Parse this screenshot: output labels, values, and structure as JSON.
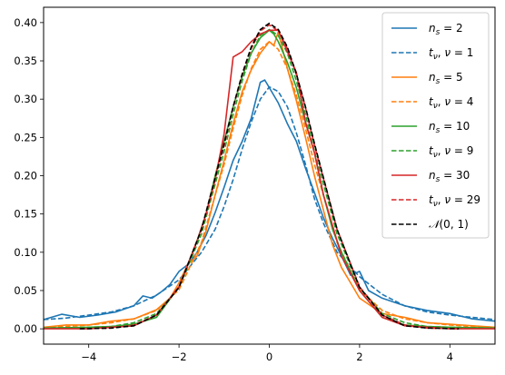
{
  "chart_data": {
    "type": "line",
    "title": "",
    "xlabel": "",
    "ylabel": "",
    "xlim": [
      -5,
      5
    ],
    "ylim": [
      -0.02,
      0.42
    ],
    "xticks": [
      -4,
      -2,
      0,
      2,
      4
    ],
    "xtick_labels": [
      "−4",
      "−2",
      "0",
      "2",
      "4"
    ],
    "yticks": [
      0.0,
      0.05,
      0.1,
      0.15,
      0.2,
      0.25,
      0.3,
      0.35,
      0.4
    ],
    "ytick_labels": [
      "0.00",
      "0.05",
      "0.10",
      "0.15",
      "0.20",
      "0.25",
      "0.30",
      "0.35",
      "0.40"
    ],
    "grid": false,
    "legend_position": "top-right",
    "series": [
      {
        "label": "n_s = 2",
        "color": "#1f77b4",
        "dash": "solid",
        "x": [
          -5.0,
          -4.6,
          -4.2,
          -3.8,
          -3.4,
          -3.0,
          -2.8,
          -2.6,
          -2.4,
          -2.2,
          -2.0,
          -1.8,
          -1.6,
          -1.4,
          -1.2,
          -1.0,
          -0.8,
          -0.6,
          -0.4,
          -0.2,
          -0.1,
          0.0,
          0.2,
          0.4,
          0.6,
          0.8,
          1.0,
          1.2,
          1.4,
          1.6,
          1.8,
          2.0,
          2.2,
          2.5,
          3.0,
          3.5,
          4.0,
          4.5,
          5.0
        ],
        "y": [
          0.012,
          0.019,
          0.015,
          0.018,
          0.022,
          0.03,
          0.043,
          0.04,
          0.048,
          0.058,
          0.075,
          0.084,
          0.1,
          0.122,
          0.152,
          0.185,
          0.22,
          0.245,
          0.275,
          0.322,
          0.325,
          0.315,
          0.295,
          0.268,
          0.245,
          0.21,
          0.178,
          0.145,
          0.118,
          0.095,
          0.07,
          0.075,
          0.05,
          0.04,
          0.03,
          0.024,
          0.02,
          0.013,
          0.01
        ]
      },
      {
        "label": "t_ν, ν = 1",
        "color": "#1f77b4",
        "dash": "dashed",
        "x": [
          -5.0,
          -4.5,
          -4.0,
          -3.5,
          -3.0,
          -2.5,
          -2.0,
          -1.5,
          -1.2,
          -1.0,
          -0.8,
          -0.6,
          -0.4,
          -0.2,
          0.0,
          0.2,
          0.4,
          0.6,
          0.8,
          1.0,
          1.2,
          1.5,
          2.0,
          2.5,
          3.0,
          3.5,
          4.0,
          4.5,
          5.0
        ],
        "y": [
          0.012,
          0.014,
          0.018,
          0.022,
          0.03,
          0.044,
          0.064,
          0.1,
          0.13,
          0.16,
          0.195,
          0.235,
          0.27,
          0.3,
          0.316,
          0.31,
          0.29,
          0.256,
          0.215,
          0.17,
          0.138,
          0.1,
          0.068,
          0.045,
          0.03,
          0.022,
          0.018,
          0.015,
          0.012
        ]
      },
      {
        "label": "n_s = 5",
        "color": "#ff7f0e",
        "dash": "solid",
        "x": [
          -5.0,
          -4.5,
          -4.0,
          -3.5,
          -3.0,
          -2.5,
          -2.2,
          -2.0,
          -1.8,
          -1.6,
          -1.4,
          -1.2,
          -1.0,
          -0.8,
          -0.6,
          -0.4,
          -0.2,
          0.0,
          0.1,
          0.2,
          0.4,
          0.6,
          0.8,
          1.0,
          1.2,
          1.4,
          1.6,
          1.8,
          2.0,
          2.5,
          3.0,
          3.5,
          4.0,
          4.5,
          5.0
        ],
        "y": [
          0.002,
          0.005,
          0.005,
          0.01,
          0.013,
          0.025,
          0.04,
          0.06,
          0.085,
          0.095,
          0.128,
          0.175,
          0.22,
          0.268,
          0.31,
          0.338,
          0.36,
          0.375,
          0.37,
          0.388,
          0.34,
          0.298,
          0.25,
          0.2,
          0.155,
          0.11,
          0.08,
          0.06,
          0.04,
          0.02,
          0.015,
          0.008,
          0.006,
          0.004,
          0.002
        ]
      },
      {
        "label": "t_ν, ν = 4",
        "color": "#ff7f0e",
        "dash": "dashed",
        "x": [
          -5.0,
          -4.5,
          -4.0,
          -3.5,
          -3.0,
          -2.5,
          -2.0,
          -1.5,
          -1.0,
          -0.8,
          -0.6,
          -0.4,
          -0.2,
          0.0,
          0.2,
          0.4,
          0.6,
          0.8,
          1.0,
          1.5,
          2.0,
          2.5,
          3.0,
          3.5,
          4.0,
          4.5,
          5.0
        ],
        "y": [
          0.002,
          0.003,
          0.005,
          0.008,
          0.013,
          0.024,
          0.051,
          0.113,
          0.215,
          0.262,
          0.305,
          0.34,
          0.365,
          0.375,
          0.365,
          0.34,
          0.305,
          0.262,
          0.215,
          0.113,
          0.051,
          0.024,
          0.013,
          0.008,
          0.005,
          0.003,
          0.002
        ]
      },
      {
        "label": "n_s = 10",
        "color": "#2ca02c",
        "dash": "solid",
        "x": [
          -5.0,
          -4.0,
          -3.5,
          -3.0,
          -2.5,
          -2.0,
          -1.6,
          -1.4,
          -1.2,
          -1.0,
          -0.8,
          -0.6,
          -0.4,
          -0.2,
          0.0,
          0.1,
          0.2,
          0.4,
          0.6,
          0.8,
          1.0,
          1.2,
          1.4,
          1.6,
          2.0,
          2.5,
          3.0,
          3.5,
          4.0,
          5.0
        ],
        "y": [
          0.001,
          0.002,
          0.003,
          0.006,
          0.015,
          0.055,
          0.115,
          0.15,
          0.2,
          0.245,
          0.29,
          0.33,
          0.36,
          0.38,
          0.39,
          0.385,
          0.375,
          0.348,
          0.315,
          0.27,
          0.23,
          0.175,
          0.13,
          0.1,
          0.05,
          0.015,
          0.005,
          0.003,
          0.002,
          0.001
        ]
      },
      {
        "label": "t_ν, ν = 9",
        "color": "#2ca02c",
        "dash": "dashed",
        "x": [
          -5.0,
          -4.0,
          -3.5,
          -3.0,
          -2.5,
          -2.0,
          -1.5,
          -1.0,
          -0.8,
          -0.6,
          -0.4,
          -0.2,
          0.0,
          0.2,
          0.4,
          0.6,
          0.8,
          1.0,
          1.5,
          2.0,
          2.5,
          3.0,
          3.5,
          4.0,
          5.0
        ],
        "y": [
          0.001,
          0.002,
          0.003,
          0.008,
          0.02,
          0.054,
          0.124,
          0.232,
          0.28,
          0.324,
          0.36,
          0.383,
          0.391,
          0.383,
          0.36,
          0.324,
          0.28,
          0.232,
          0.124,
          0.054,
          0.02,
          0.008,
          0.003,
          0.002,
          0.001
        ]
      },
      {
        "label": "n_s = 30",
        "color": "#d62728",
        "dash": "solid",
        "x": [
          -5.0,
          -4.0,
          -3.0,
          -2.5,
          -2.0,
          -1.6,
          -1.4,
          -1.2,
          -1.0,
          -0.8,
          -0.6,
          -0.4,
          -0.2,
          0.0,
          0.2,
          0.4,
          0.6,
          0.8,
          1.0,
          1.2,
          1.4,
          1.6,
          2.0,
          2.5,
          3.0,
          4.0,
          5.0
        ],
        "y": [
          0.0,
          0.0,
          0.004,
          0.018,
          0.055,
          0.115,
          0.15,
          0.195,
          0.255,
          0.355,
          0.362,
          0.375,
          0.385,
          0.39,
          0.39,
          0.362,
          0.335,
          0.27,
          0.23,
          0.175,
          0.135,
          0.095,
          0.05,
          0.015,
          0.004,
          0.0,
          0.0
        ]
      },
      {
        "label": "t_ν, ν = 29",
        "color": "#d62728",
        "dash": "dashed",
        "x": [
          -4.2,
          -3.5,
          -3.0,
          -2.5,
          -2.0,
          -1.5,
          -1.0,
          -0.8,
          -0.6,
          -0.4,
          -0.2,
          0.0,
          0.2,
          0.4,
          0.6,
          0.8,
          1.0,
          1.5,
          2.0,
          2.5,
          3.0,
          3.5,
          4.2
        ],
        "y": [
          0.0,
          0.001,
          0.005,
          0.018,
          0.055,
          0.13,
          0.24,
          0.289,
          0.332,
          0.366,
          0.389,
          0.397,
          0.389,
          0.366,
          0.332,
          0.289,
          0.24,
          0.13,
          0.055,
          0.018,
          0.005,
          0.001,
          0.0
        ]
      },
      {
        "label": "N(0, 1)",
        "color": "#000000",
        "dash": "dashed",
        "x": [
          -4.2,
          -3.5,
          -3.0,
          -2.5,
          -2.0,
          -1.5,
          -1.0,
          -0.8,
          -0.6,
          -0.4,
          -0.2,
          0.0,
          0.2,
          0.4,
          0.6,
          0.8,
          1.0,
          1.5,
          2.0,
          2.5,
          3.0,
          3.5,
          4.2
        ],
        "y": [
          0.0,
          0.001,
          0.004,
          0.018,
          0.054,
          0.13,
          0.242,
          0.29,
          0.333,
          0.368,
          0.391,
          0.399,
          0.391,
          0.368,
          0.333,
          0.29,
          0.242,
          0.13,
          0.054,
          0.018,
          0.004,
          0.001,
          0.0
        ]
      }
    ]
  }
}
